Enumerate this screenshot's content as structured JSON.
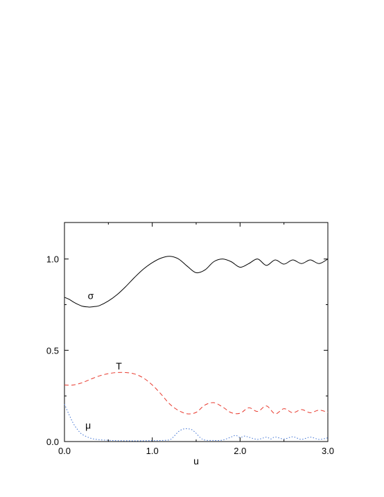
{
  "chart_data": {
    "type": "line",
    "title": "",
    "xlabel": "u",
    "ylabel": "",
    "xlim": [
      0.0,
      3.0
    ],
    "ylim": [
      0.0,
      1.2
    ],
    "x_ticks": [
      "0.0",
      "1.0",
      "2.0",
      "3.0"
    ],
    "y_ticks": [
      "0.0",
      "0.5",
      "1.0"
    ],
    "x_tick_values": [
      0,
      1,
      2,
      3
    ],
    "y_tick_values": [
      0,
      0.5,
      1.0
    ],
    "grid": false,
    "legend": "none",
    "series": [
      {
        "name": "σ",
        "color": "#000000",
        "style": "solid",
        "x": [
          0.0,
          0.05,
          0.1,
          0.15,
          0.2,
          0.25,
          0.3,
          0.35,
          0.4,
          0.5,
          0.6,
          0.7,
          0.8,
          0.9,
          1.0,
          1.1,
          1.2,
          1.3,
          1.4,
          1.5,
          1.6,
          1.7,
          1.8,
          1.9,
          2.0,
          2.1,
          2.2,
          2.3,
          2.4,
          2.5,
          2.6,
          2.7,
          2.8,
          2.9,
          3.0
        ],
        "values": [
          0.79,
          0.78,
          0.765,
          0.752,
          0.742,
          0.738,
          0.737,
          0.74,
          0.745,
          0.77,
          0.805,
          0.85,
          0.9,
          0.945,
          0.98,
          1.005,
          1.015,
          1.0,
          0.96,
          0.925,
          0.94,
          0.985,
          1.0,
          0.985,
          0.955,
          0.975,
          1.0,
          0.965,
          0.995,
          0.972,
          0.995,
          0.975,
          0.995,
          0.975,
          1.0
        ]
      },
      {
        "name": "T",
        "color": "#e8382c",
        "style": "dashed",
        "x": [
          0.0,
          0.1,
          0.2,
          0.3,
          0.4,
          0.5,
          0.6,
          0.7,
          0.8,
          0.9,
          1.0,
          1.1,
          1.2,
          1.3,
          1.4,
          1.5,
          1.6,
          1.7,
          1.8,
          1.9,
          2.0,
          2.1,
          2.2,
          2.3,
          2.4,
          2.5,
          2.6,
          2.7,
          2.8,
          2.9,
          3.0
        ],
        "values": [
          0.31,
          0.31,
          0.322,
          0.342,
          0.36,
          0.372,
          0.378,
          0.378,
          0.37,
          0.348,
          0.31,
          0.26,
          0.205,
          0.17,
          0.152,
          0.16,
          0.2,
          0.213,
          0.19,
          0.158,
          0.155,
          0.185,
          0.165,
          0.195,
          0.152,
          0.18,
          0.158,
          0.175,
          0.158,
          0.172,
          0.16
        ]
      },
      {
        "name": "μ",
        "color": "#3a6fd2",
        "style": "dotted",
        "x": [
          0.0,
          0.05,
          0.1,
          0.15,
          0.2,
          0.3,
          0.4,
          0.5,
          0.6,
          0.8,
          1.0,
          1.1,
          1.2,
          1.25,
          1.3,
          1.35,
          1.4,
          1.45,
          1.5,
          1.55,
          1.6,
          1.7,
          1.8,
          1.9,
          1.95,
          2.0,
          2.05,
          2.1,
          2.2,
          2.3,
          2.35,
          2.4,
          2.5,
          2.6,
          2.7,
          2.8,
          2.9,
          3.0
        ],
        "values": [
          0.205,
          0.15,
          0.1,
          0.065,
          0.04,
          0.018,
          0.01,
          0.007,
          0.005,
          0.004,
          0.005,
          0.006,
          0.01,
          0.03,
          0.055,
          0.068,
          0.07,
          0.065,
          0.045,
          0.02,
          0.008,
          0.006,
          0.008,
          0.025,
          0.034,
          0.022,
          0.03,
          0.024,
          0.012,
          0.024,
          0.014,
          0.025,
          0.014,
          0.026,
          0.012,
          0.024,
          0.012,
          0.02
        ]
      }
    ],
    "annotations": [
      {
        "text": "σ",
        "x": 0.3,
        "y": 0.78
      },
      {
        "text": "T",
        "x": 0.62,
        "y": 0.395
      },
      {
        "text": "μ",
        "x": 0.27,
        "y": 0.07
      }
    ]
  }
}
